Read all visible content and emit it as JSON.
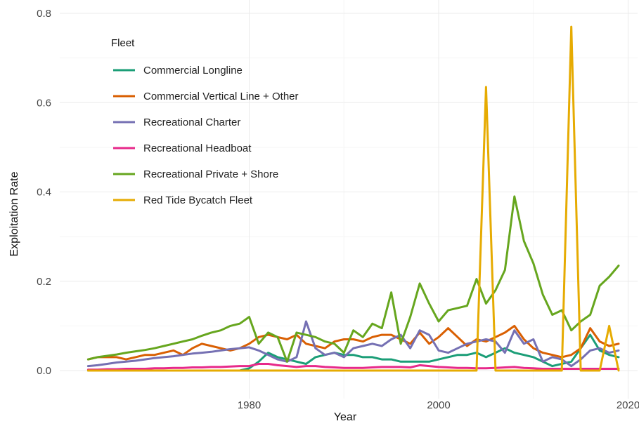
{
  "chart_data": {
    "type": "line",
    "title": "",
    "xlabel": "Year",
    "ylabel": "Exploitation Rate",
    "xlim": [
      1960,
      2021
    ],
    "ylim": [
      0,
      0.8
    ],
    "x_ticks": [
      1980,
      2000,
      2020
    ],
    "x_tick_labels": [
      "1980",
      "2000",
      "2020"
    ],
    "y_ticks": [
      0.0,
      0.2,
      0.4,
      0.6,
      0.8
    ],
    "y_tick_labels": [
      "0.0",
      "0.2",
      "0.4",
      "0.6",
      "0.8"
    ],
    "grid": true,
    "legend_title": "Fleet",
    "legend_position": "top-left (inside)",
    "x": [
      1963,
      1964,
      1965,
      1966,
      1967,
      1968,
      1969,
      1970,
      1971,
      1972,
      1973,
      1974,
      1975,
      1976,
      1977,
      1978,
      1979,
      1980,
      1981,
      1982,
      1983,
      1984,
      1985,
      1986,
      1987,
      1988,
      1989,
      1990,
      1991,
      1992,
      1993,
      1994,
      1995,
      1996,
      1997,
      1998,
      1999,
      2000,
      2001,
      2002,
      2003,
      2004,
      2005,
      2006,
      2007,
      2008,
      2009,
      2010,
      2011,
      2012,
      2013,
      2014,
      2015,
      2016,
      2017,
      2018,
      2019
    ],
    "series": [
      {
        "name": "Commercial Longline",
        "color": "#1b9e77",
        "values": [
          0,
          0,
          0,
          0,
          0,
          0,
          0,
          0,
          0,
          0,
          0,
          0,
          0,
          0,
          0,
          0,
          0,
          0.005,
          0.02,
          0.04,
          0.03,
          0.025,
          0.02,
          0.015,
          0.03,
          0.035,
          0.04,
          0.035,
          0.035,
          0.03,
          0.03,
          0.025,
          0.025,
          0.02,
          0.02,
          0.02,
          0.02,
          0.025,
          0.03,
          0.035,
          0.035,
          0.04,
          0.03,
          0.04,
          0.05,
          0.04,
          0.035,
          0.03,
          0.02,
          0.01,
          0.015,
          0.02,
          0.05,
          0.08,
          0.045,
          0.035,
          0.03
        ]
      },
      {
        "name": "Commercial Vertical Line + Other",
        "color": "#d95f02",
        "values": [
          0.025,
          0.03,
          0.03,
          0.03,
          0.025,
          0.03,
          0.035,
          0.035,
          0.04,
          0.045,
          0.035,
          0.05,
          0.06,
          0.055,
          0.05,
          0.045,
          0.05,
          0.06,
          0.075,
          0.08,
          0.075,
          0.07,
          0.08,
          0.06,
          0.055,
          0.05,
          0.065,
          0.07,
          0.07,
          0.065,
          0.075,
          0.08,
          0.08,
          0.07,
          0.06,
          0.085,
          0.06,
          0.075,
          0.095,
          0.075,
          0.055,
          0.07,
          0.065,
          0.075,
          0.085,
          0.1,
          0.07,
          0.05,
          0.04,
          0.035,
          0.03,
          0.035,
          0.05,
          0.095,
          0.065,
          0.055,
          0.06
        ]
      },
      {
        "name": "Recreational Charter",
        "color": "#7570b3",
        "values": [
          0.01,
          0.012,
          0.015,
          0.018,
          0.02,
          0.022,
          0.025,
          0.028,
          0.03,
          0.032,
          0.035,
          0.038,
          0.04,
          0.042,
          0.045,
          0.048,
          0.05,
          0.052,
          0.045,
          0.035,
          0.025,
          0.02,
          0.03,
          0.11,
          0.05,
          0.035,
          0.04,
          0.03,
          0.05,
          0.055,
          0.06,
          0.055,
          0.07,
          0.08,
          0.05,
          0.09,
          0.08,
          0.045,
          0.04,
          0.05,
          0.06,
          0.065,
          0.07,
          0.065,
          0.04,
          0.09,
          0.06,
          0.07,
          0.02,
          0.03,
          0.025,
          0.01,
          0.025,
          0.045,
          0.05,
          0.04,
          0.045
        ]
      },
      {
        "name": "Recreational Headboat",
        "color": "#e7298a",
        "values": [
          0.002,
          0.002,
          0.003,
          0.003,
          0.004,
          0.004,
          0.004,
          0.005,
          0.005,
          0.006,
          0.006,
          0.007,
          0.007,
          0.008,
          0.008,
          0.009,
          0.01,
          0.01,
          0.015,
          0.015,
          0.012,
          0.01,
          0.008,
          0.01,
          0.01,
          0.008,
          0.007,
          0.006,
          0.006,
          0.006,
          0.007,
          0.008,
          0.008,
          0.008,
          0.007,
          0.012,
          0.01,
          0.008,
          0.007,
          0.006,
          0.006,
          0.005,
          0.005,
          0.006,
          0.007,
          0.008,
          0.006,
          0.005,
          0.004,
          0.004,
          0.004,
          0.004,
          0.004,
          0.004,
          0.004,
          0.004,
          0.004
        ]
      },
      {
        "name": "Recreational Private + Shore",
        "color": "#66a61e",
        "values": [
          0.025,
          0.03,
          0.033,
          0.036,
          0.04,
          0.043,
          0.046,
          0.05,
          0.055,
          0.06,
          0.065,
          0.07,
          0.078,
          0.085,
          0.09,
          0.1,
          0.105,
          0.12,
          0.06,
          0.085,
          0.075,
          0.02,
          0.085,
          0.08,
          0.075,
          0.065,
          0.06,
          0.04,
          0.09,
          0.075,
          0.105,
          0.095,
          0.175,
          0.06,
          0.12,
          0.195,
          0.15,
          0.11,
          0.135,
          0.14,
          0.145,
          0.205,
          0.15,
          0.18,
          0.225,
          0.39,
          0.29,
          0.24,
          0.17,
          0.125,
          0.135,
          0.09,
          0.11,
          0.125,
          0.19,
          0.21,
          0.235
        ]
      },
      {
        "name": "Red Tide Bycatch Fleet",
        "color": "#e6ab02",
        "values": [
          0,
          0,
          0,
          0,
          0,
          0,
          0,
          0,
          0,
          0,
          0,
          0,
          0,
          0,
          0,
          0,
          0,
          0,
          0,
          0,
          0,
          0,
          0,
          0,
          0,
          0,
          0,
          0,
          0,
          0,
          0,
          0,
          0,
          0,
          0,
          0,
          0,
          0,
          0,
          0,
          0,
          0,
          0.635,
          0,
          0,
          0,
          0,
          0,
          0,
          0,
          0,
          0.77,
          0,
          0,
          0,
          0.1,
          0
        ]
      }
    ]
  }
}
